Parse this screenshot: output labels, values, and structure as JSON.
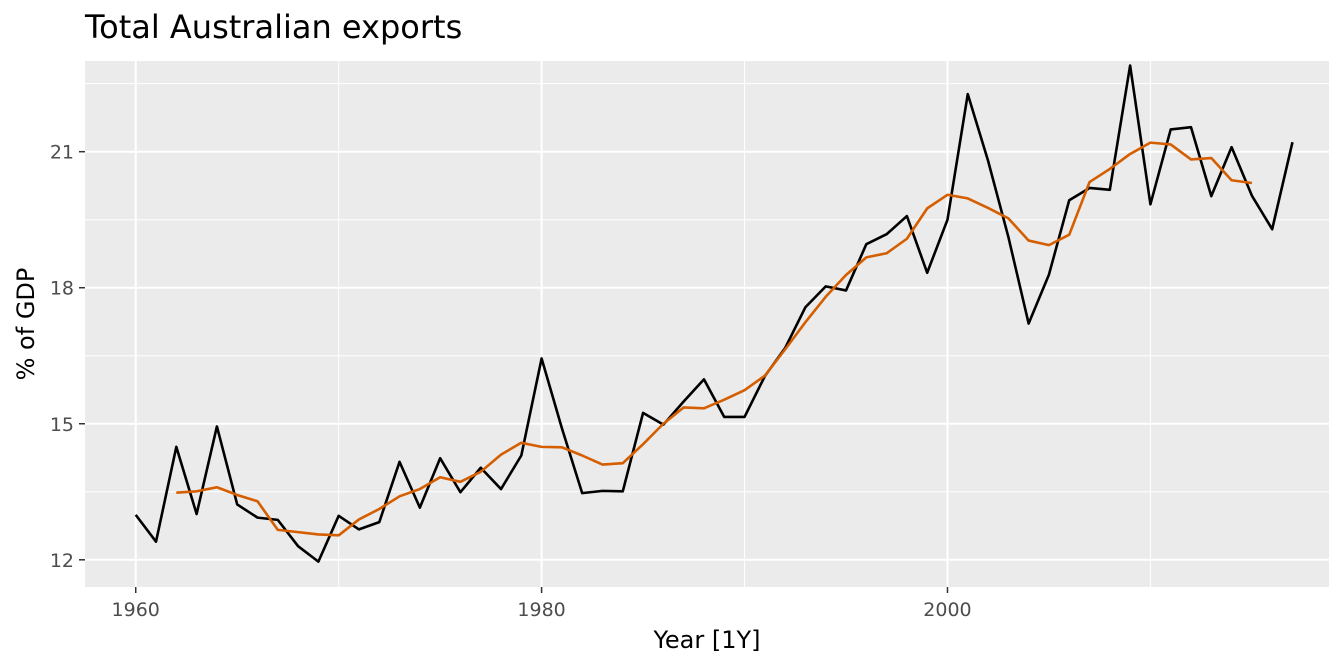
{
  "chart_data": {
    "type": "line",
    "title": "Total Australian exports",
    "xlabel": "Year [1Y]",
    "ylabel": "% of GDP",
    "xlim": [
      1957.5,
      2018.8
    ],
    "ylim": [
      11.4,
      23.0
    ],
    "x_ticks": [
      1960,
      1980,
      2000
    ],
    "x_tick_labels": [
      "1960",
      "1980",
      "2000"
    ],
    "y_ticks": [
      12,
      15,
      18,
      21
    ],
    "y_tick_labels": [
      "12",
      "15",
      "18",
      "21"
    ],
    "grid": true,
    "background": "#ebebeb",
    "series": [
      {
        "color": "#000000",
        "x": [
          1960,
          1961,
          1962,
          1963,
          1964,
          1965,
          1966,
          1967,
          1968,
          1969,
          1970,
          1971,
          1972,
          1973,
          1974,
          1975,
          1976,
          1977,
          1978,
          1979,
          1980,
          1981,
          1982,
          1983,
          1984,
          1985,
          1986,
          1987,
          1988,
          1989,
          1990,
          1991,
          1992,
          1993,
          1994,
          1995,
          1996,
          1997,
          1998,
          1999,
          2000,
          2001,
          2002,
          2003,
          2004,
          2005,
          2006,
          2007,
          2008,
          2009,
          2010,
          2011,
          2012,
          2013,
          2014,
          2015,
          2016,
          2017
        ],
        "values": [
          12.99,
          12.4,
          14.49,
          13.01,
          14.94,
          13.22,
          12.93,
          12.88,
          12.3,
          11.96,
          12.97,
          12.67,
          12.83,
          14.16,
          13.15,
          14.24,
          13.49,
          14.03,
          13.56,
          14.3,
          16.44,
          14.9,
          13.47,
          13.52,
          13.51,
          15.24,
          14.98,
          15.49,
          15.98,
          15.15,
          15.15,
          16.05,
          16.67,
          17.57,
          18.03,
          17.94,
          18.96,
          19.18,
          19.58,
          18.33,
          19.5,
          22.27,
          20.8,
          19.12,
          17.21,
          18.29,
          19.93,
          20.2,
          20.16,
          22.9,
          19.84,
          21.49,
          21.54,
          20.02,
          21.1,
          20.03,
          19.29,
          21.21
        ]
      },
      {
        "color": "#d55e00",
        "x": [
          1962,
          1963,
          1964,
          1965,
          1966,
          1967,
          1968,
          1969,
          1970,
          1971,
          1972,
          1973,
          1974,
          1975,
          1976,
          1977,
          1978,
          1979,
          1980,
          1981,
          1982,
          1983,
          1984,
          1985,
          1986,
          1987,
          1988,
          1989,
          1990,
          1991,
          1992,
          1993,
          1994,
          1995,
          1996,
          1997,
          1998,
          1999,
          2000,
          2001,
          2002,
          2003,
          2004,
          2005,
          2006,
          2007,
          2008,
          2009,
          2010,
          2011,
          2012,
          2013,
          2014,
          2015
        ],
        "values": [
          13.48,
          13.51,
          13.6,
          13.43,
          13.29,
          12.66,
          12.61,
          12.56,
          12.54,
          12.89,
          13.12,
          13.4,
          13.56,
          13.82,
          13.72,
          13.94,
          14.32,
          14.58,
          14.49,
          14.48,
          14.3,
          14.1,
          14.13,
          14.55,
          15.0,
          15.36,
          15.34,
          15.53,
          15.74,
          16.06,
          16.64,
          17.24,
          17.8,
          18.28,
          18.67,
          18.76,
          19.08,
          19.75,
          20.05,
          19.97,
          19.76,
          19.53,
          19.04,
          18.94,
          19.17,
          20.33,
          20.62,
          20.95,
          21.2,
          21.16,
          20.83,
          20.86,
          20.37,
          20.31
        ]
      }
    ]
  }
}
